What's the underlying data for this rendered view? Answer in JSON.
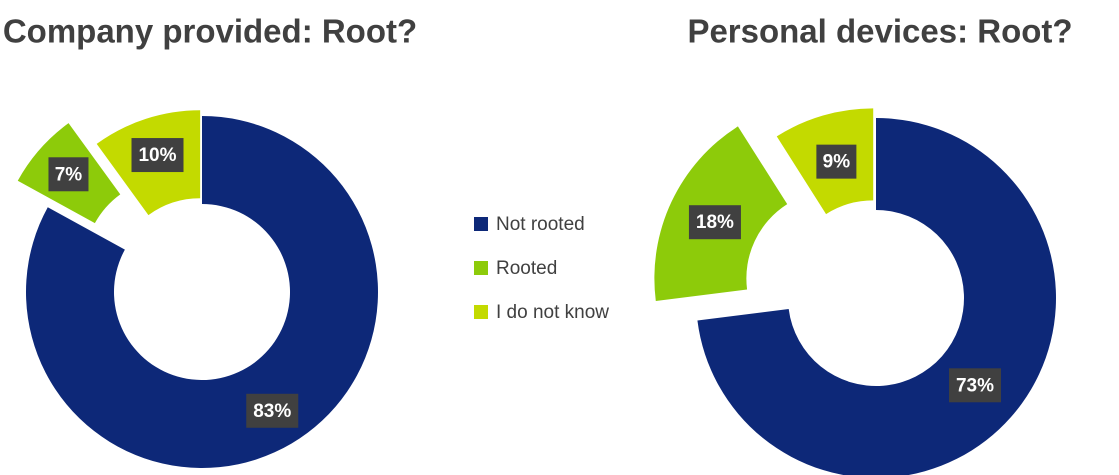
{
  "chart_data": [
    {
      "type": "pie",
      "title": "Company provided: Root?",
      "categories": [
        "Not rooted",
        "Rooted",
        "I do not know"
      ],
      "values": [
        83,
        7,
        10
      ],
      "value_labels": [
        "83%",
        "7%",
        "10%"
      ],
      "colors": [
        "#0d2878",
        "#8dcb0a",
        "#c3da00"
      ]
    },
    {
      "type": "pie",
      "title": "Personal devices: Root?",
      "categories": [
        "Not rooted",
        "Rooted",
        "I do not know"
      ],
      "values": [
        73,
        18,
        9
      ],
      "value_labels": [
        "73%",
        "18%",
        "9%"
      ],
      "colors": [
        "#0d2878",
        "#8dcb0a",
        "#c3da00"
      ]
    }
  ]
}
